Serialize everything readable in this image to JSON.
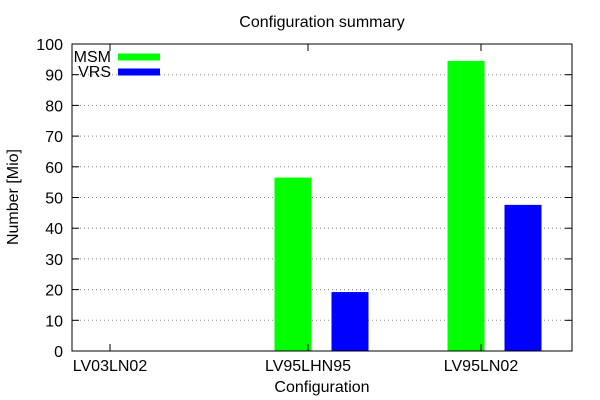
{
  "chart_data": {
    "type": "bar",
    "title": "Configuration summary",
    "xlabel": "Configuration",
    "ylabel": "Number [Mio]",
    "categories": [
      "LV03LN02",
      "LV95LHN95",
      "LV95LN02"
    ],
    "ylim": [
      0,
      100
    ],
    "yticks": [
      0,
      10,
      20,
      30,
      40,
      50,
      60,
      70,
      80,
      90,
      100
    ],
    "grid": true,
    "legend_position": "top-left",
    "series": [
      {
        "name": "MSM",
        "color": "#00ff00",
        "values": [
          0,
          56.5,
          94.5
        ]
      },
      {
        "name": "VRS",
        "color": "#0000ff",
        "values": [
          0,
          19.2,
          47.6
        ]
      }
    ]
  }
}
